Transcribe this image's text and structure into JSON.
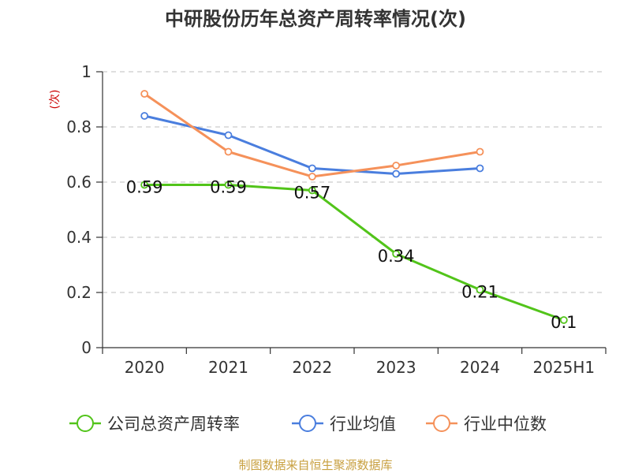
{
  "chart_data": {
    "type": "line",
    "title": "中研股份历年总资产周转率情况(次)",
    "ylabel": "(次)",
    "categories": [
      "2020",
      "2021",
      "2022",
      "2023",
      "2024",
      "2025H1"
    ],
    "ylim": [
      0,
      1
    ],
    "yticks": [
      "0",
      "0.2",
      "0.4",
      "0.6",
      "0.8",
      "1"
    ],
    "grid": true,
    "legend_position": "bottom",
    "series": [
      {
        "name": "公司总资产周转率",
        "color": "#52c41a",
        "values": [
          0.59,
          0.59,
          0.57,
          0.34,
          0.21,
          0.1
        ],
        "labels": [
          "0.59",
          "0.59",
          "0.57",
          "0.34",
          "0.21",
          "0.1"
        ]
      },
      {
        "name": "行业均值",
        "color": "#4a7ede",
        "values": [
          0.84,
          0.77,
          0.65,
          0.63,
          0.65,
          null
        ]
      },
      {
        "name": "行业中位数",
        "color": "#f5915a",
        "values": [
          0.92,
          0.71,
          0.62,
          0.66,
          0.71,
          null
        ]
      }
    ]
  },
  "ylabel_color": "#cc0000",
  "source": {
    "text": "制图数据来自恒生聚源数据库",
    "color": "#c8a040"
  }
}
